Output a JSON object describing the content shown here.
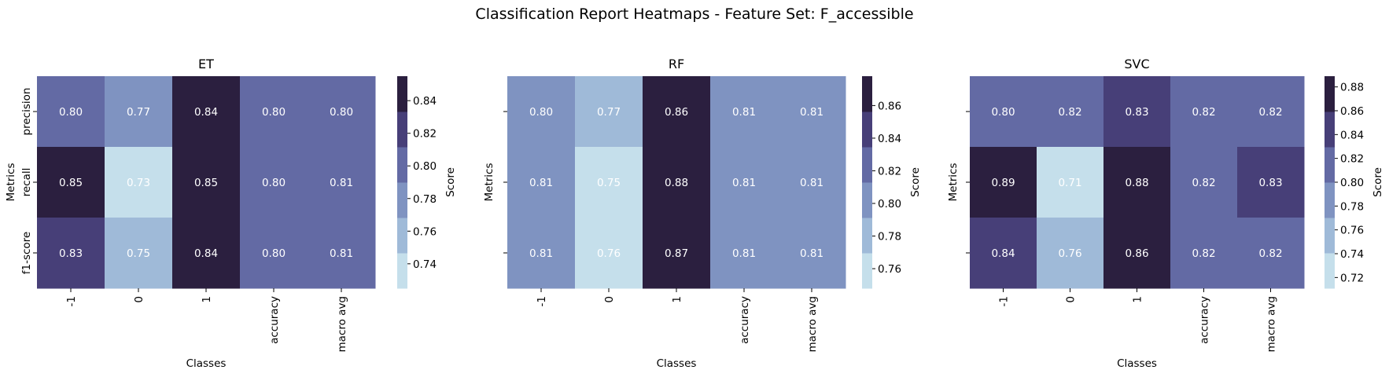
{
  "title": "Classification Report Heatmaps - Feature Set: F_accessible",
  "chart_data": [
    {
      "type": "heatmap",
      "title": "ET",
      "xlabel": "Classes",
      "ylabel": "Metrics",
      "colorbar_label": "Score",
      "categories": [
        "-1",
        "0",
        "1",
        "accuracy",
        "macro avg"
      ],
      "rows": [
        "precision",
        "recall",
        "f1-score"
      ],
      "values": [
        [
          0.8,
          0.77,
          0.84,
          0.8,
          0.8
        ],
        [
          0.85,
          0.73,
          0.85,
          0.8,
          0.81
        ],
        [
          0.83,
          0.75,
          0.84,
          0.8,
          0.81
        ]
      ],
      "show_row_labels": true,
      "colorbar_range": [
        0.725,
        0.855
      ],
      "colorbar_ticks": [
        "0.74",
        "0.76",
        "0.78",
        "0.80",
        "0.82",
        "0.84"
      ]
    },
    {
      "type": "heatmap",
      "title": "RF",
      "xlabel": "Classes",
      "ylabel": "Metrics",
      "colorbar_label": "Score",
      "categories": [
        "-1",
        "0",
        "1",
        "accuracy",
        "macro avg"
      ],
      "rows": [
        "precision",
        "recall",
        "f1-score"
      ],
      "values": [
        [
          0.8,
          0.77,
          0.86,
          0.81,
          0.81
        ],
        [
          0.81,
          0.75,
          0.88,
          0.81,
          0.81
        ],
        [
          0.81,
          0.76,
          0.87,
          0.81,
          0.81
        ]
      ],
      "show_row_labels": false,
      "colorbar_range": [
        0.748,
        0.878
      ],
      "colorbar_ticks": [
        "0.76",
        "0.78",
        "0.80",
        "0.82",
        "0.84",
        "0.86"
      ]
    },
    {
      "type": "heatmap",
      "title": "SVC",
      "xlabel": "Classes",
      "ylabel": "Metrics",
      "colorbar_label": "Score",
      "categories": [
        "-1",
        "0",
        "1",
        "accuracy",
        "macro avg"
      ],
      "rows": [
        "precision",
        "recall",
        "f1-score"
      ],
      "values": [
        [
          0.8,
          0.82,
          0.83,
          0.82,
          0.82
        ],
        [
          0.89,
          0.71,
          0.88,
          0.82,
          0.83
        ],
        [
          0.84,
          0.76,
          0.86,
          0.82,
          0.82
        ]
      ],
      "show_row_labels": false,
      "colorbar_range": [
        0.711,
        0.889
      ],
      "colorbar_ticks": [
        "0.72",
        "0.74",
        "0.76",
        "0.78",
        "0.80",
        "0.82",
        "0.84",
        "0.86",
        "0.88"
      ]
    }
  ],
  "colors": {
    "scale": [
      "#c5dfeb",
      "#9fbad8",
      "#7f93c1",
      "#636aa4",
      "#473f78",
      "#2b1f3f"
    ]
  }
}
